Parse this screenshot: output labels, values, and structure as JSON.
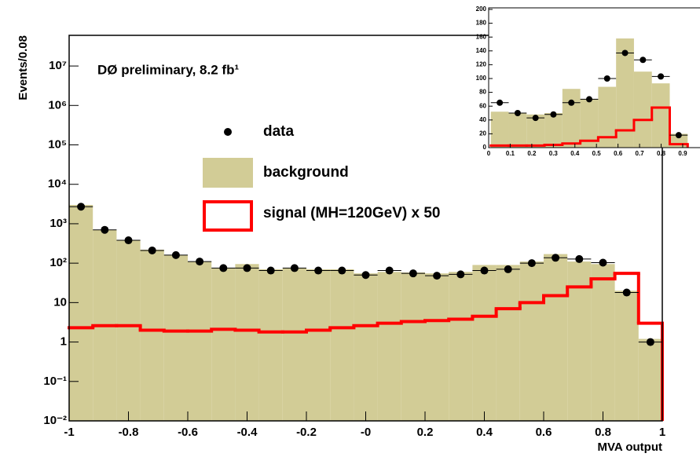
{
  "chart_data": [
    {
      "type": "histogram",
      "y_label": "Events/0.08",
      "x_label": "MVA output",
      "annotation": "DØ preliminary, 8.2 fb¹",
      "log_y": true,
      "bins": [
        -1,
        -0.92,
        -0.84,
        -0.76,
        -0.68,
        -0.6,
        -0.52,
        -0.44,
        -0.36,
        -0.28,
        -0.2,
        -0.12,
        -0.04,
        0.04,
        0.12,
        0.2,
        0.28,
        0.36,
        0.44,
        0.52,
        0.6,
        0.68,
        0.76,
        0.84,
        0.92,
        1
      ],
      "series": [
        {
          "name": "data",
          "style": "points",
          "color": "#000000",
          "values": [
            2700,
            700,
            380,
            210,
            160,
            110,
            75,
            75,
            65,
            75,
            65,
            65,
            50,
            65,
            55,
            48,
            52,
            65,
            70,
            100,
            137,
            127,
            103,
            18,
            1
          ]
        },
        {
          "name": "background",
          "style": "fill",
          "color": "#d2cc96",
          "values": [
            3000,
            700,
            380,
            220,
            160,
            110,
            75,
            95,
            70,
            75,
            70,
            70,
            55,
            60,
            58,
            55,
            60,
            90,
            90,
            110,
            170,
            110,
            95,
            20,
            1.2
          ]
        },
        {
          "name": "signal (MH=120GeV) x 50",
          "style": "step",
          "color": "#ff0000",
          "values": [
            2.3,
            2.6,
            2.6,
            2,
            1.9,
            1.9,
            2.1,
            2,
            1.8,
            1.8,
            2,
            2.3,
            2.6,
            3,
            3.3,
            3.5,
            3.8,
            4.5,
            7,
            10,
            15,
            25,
            40,
            55,
            3
          ]
        }
      ],
      "xlim": [
        -1,
        1
      ],
      "xticks": [
        -1,
        -0.8,
        -0.6,
        -0.4,
        -0.2,
        {
          "value": 0,
          "label": "-0"
        },
        0.2,
        0.4,
        0.6,
        0.8,
        1
      ],
      "ylim": [
        0.01,
        60000000
      ],
      "yticks": [
        {
          "value": 0.01,
          "label": "10⁻²"
        },
        {
          "value": 0.1,
          "label": "10⁻¹"
        },
        1,
        10,
        {
          "value": 100,
          "label": "10²"
        },
        {
          "value": 1000,
          "label": "10³"
        },
        {
          "value": 10000,
          "label": "10⁴"
        },
        {
          "value": 100000,
          "label": "10⁵"
        },
        {
          "value": 1000000,
          "label": "10⁶"
        },
        {
          "value": 10000000,
          "label": "10⁷"
        }
      ]
    },
    {
      "type": "histogram",
      "log_y": false,
      "bins": [
        0.01,
        0.093,
        0.176,
        0.259,
        0.342,
        0.425,
        0.508,
        0.591,
        0.674,
        0.757,
        0.84,
        0.923
      ],
      "series": [
        {
          "name": "data",
          "style": "points",
          "color": "#000000",
          "values": [
            65,
            50,
            43,
            48,
            65,
            70,
            100,
            137,
            127,
            103,
            18
          ]
        },
        {
          "name": "background",
          "style": "fill",
          "color": "#d2cc96",
          "values": [
            52,
            50,
            48,
            50,
            85,
            70,
            88,
            158,
            110,
            93,
            20
          ]
        },
        {
          "name": "signal",
          "style": "step",
          "color": "#ff0000",
          "values": [
            3,
            3,
            3,
            4,
            6,
            10,
            15,
            25,
            40,
            58,
            5
          ]
        }
      ],
      "xlim": [
        0,
        1
      ],
      "xticks": [
        0,
        0.1,
        0.2,
        0.3,
        0.4,
        0.5,
        0.6,
        0.7,
        0.8,
        0.9
      ],
      "ylim": [
        0,
        200
      ],
      "yticks": [
        0,
        20,
        40,
        60,
        80,
        100,
        120,
        140,
        160,
        180,
        200
      ]
    }
  ]
}
